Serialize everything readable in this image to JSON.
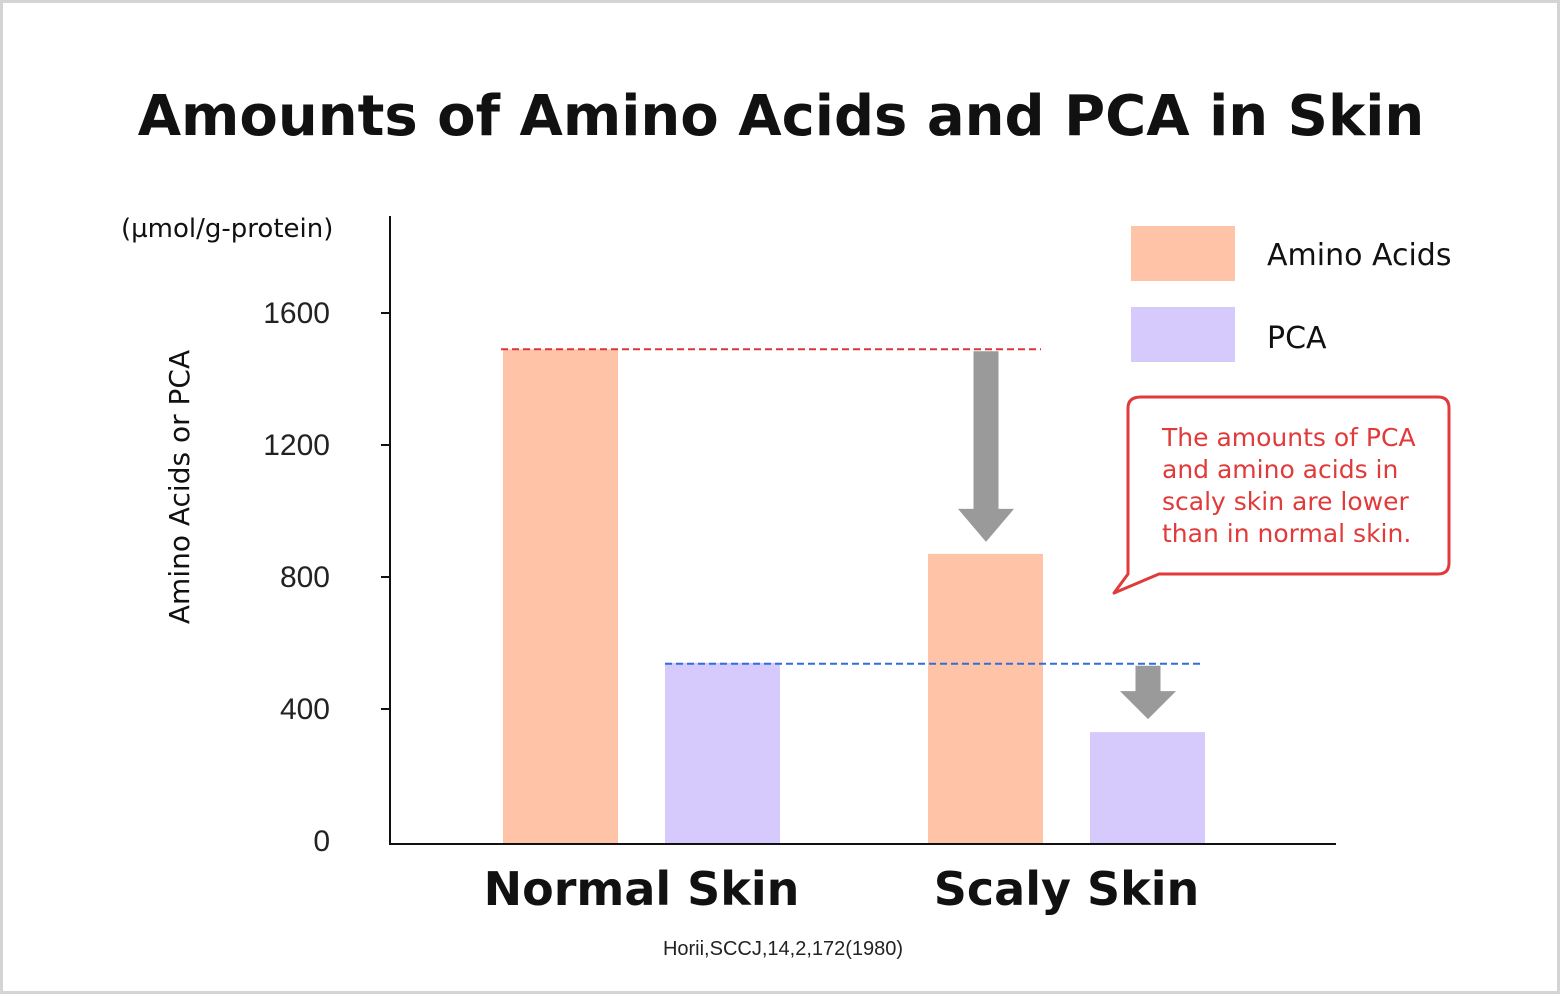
{
  "colors": {
    "amino": "#ffc4a8",
    "pca": "#d6c9fb",
    "arrow": "#9a9a9a",
    "red_guide": "#d9363e",
    "blue_guide": "#2f6fdc",
    "note": "#e03a3a"
  },
  "chart_data": {
    "type": "bar",
    "title": "Amounts of Amino Acids and PCA in Skin",
    "unit": "(µmol/g-protein)",
    "ylabel": "Amino Acids or PCA",
    "xlabel": "",
    "ylim": [
      0,
      1900
    ],
    "yticks": [
      0,
      400,
      800,
      1200,
      1600
    ],
    "categories": [
      "Normal Skin",
      "Scaly Skin"
    ],
    "series": [
      {
        "name": "Amino Acids",
        "values": [
          1490,
          870
        ]
      },
      {
        "name": "PCA",
        "values": [
          540,
          330
        ]
      }
    ],
    "guides": [
      {
        "series": "Amino Acids",
        "value": 1490
      },
      {
        "series": "PCA",
        "value": 540
      }
    ],
    "legend": [
      "Amino Acids",
      "PCA"
    ],
    "legend_position": "top-right",
    "annotation_lines": [
      "The amounts of PCA",
      "and amino acids in",
      "scaly skin are lower",
      "than in normal skin."
    ],
    "source": "Horii,SCCJ,14,2,172(1980)",
    "grid": false
  }
}
